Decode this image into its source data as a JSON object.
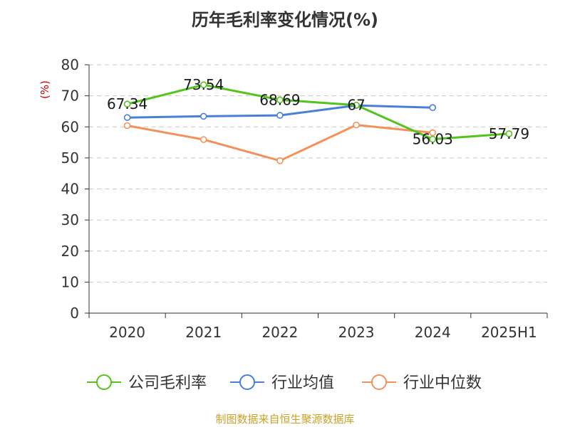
{
  "footer": {
    "source": "制图数据来自恒生聚源数据库"
  },
  "chart_data": {
    "type": "line",
    "title": "历年毛利率变化情况(%)",
    "xlabel": "",
    "ylabel": "(%)",
    "categories": [
      "2020",
      "2021",
      "2022",
      "2023",
      "2024",
      "2025H1"
    ],
    "ylim": [
      0,
      80
    ],
    "yticks": [
      0,
      10,
      20,
      30,
      40,
      50,
      60,
      70,
      80
    ],
    "grid": true,
    "legend_position": "bottom",
    "series": [
      {
        "name": "公司毛利率",
        "color": "#52c41a",
        "values": [
          67.34,
          73.54,
          68.69,
          67,
          56.03,
          57.79
        ],
        "labels": [
          "67.34",
          "73.54",
          "68.69",
          "67",
          "56.03",
          "57.79"
        ]
      },
      {
        "name": "行业均值",
        "color": "#4a7fd8",
        "values": [
          63.0,
          63.4,
          63.7,
          66.9,
          66.2,
          null
        ]
      },
      {
        "name": "行业中位数",
        "color": "#f4915a",
        "values": [
          60.4,
          55.9,
          49.1,
          60.6,
          58.1,
          null
        ]
      }
    ]
  }
}
